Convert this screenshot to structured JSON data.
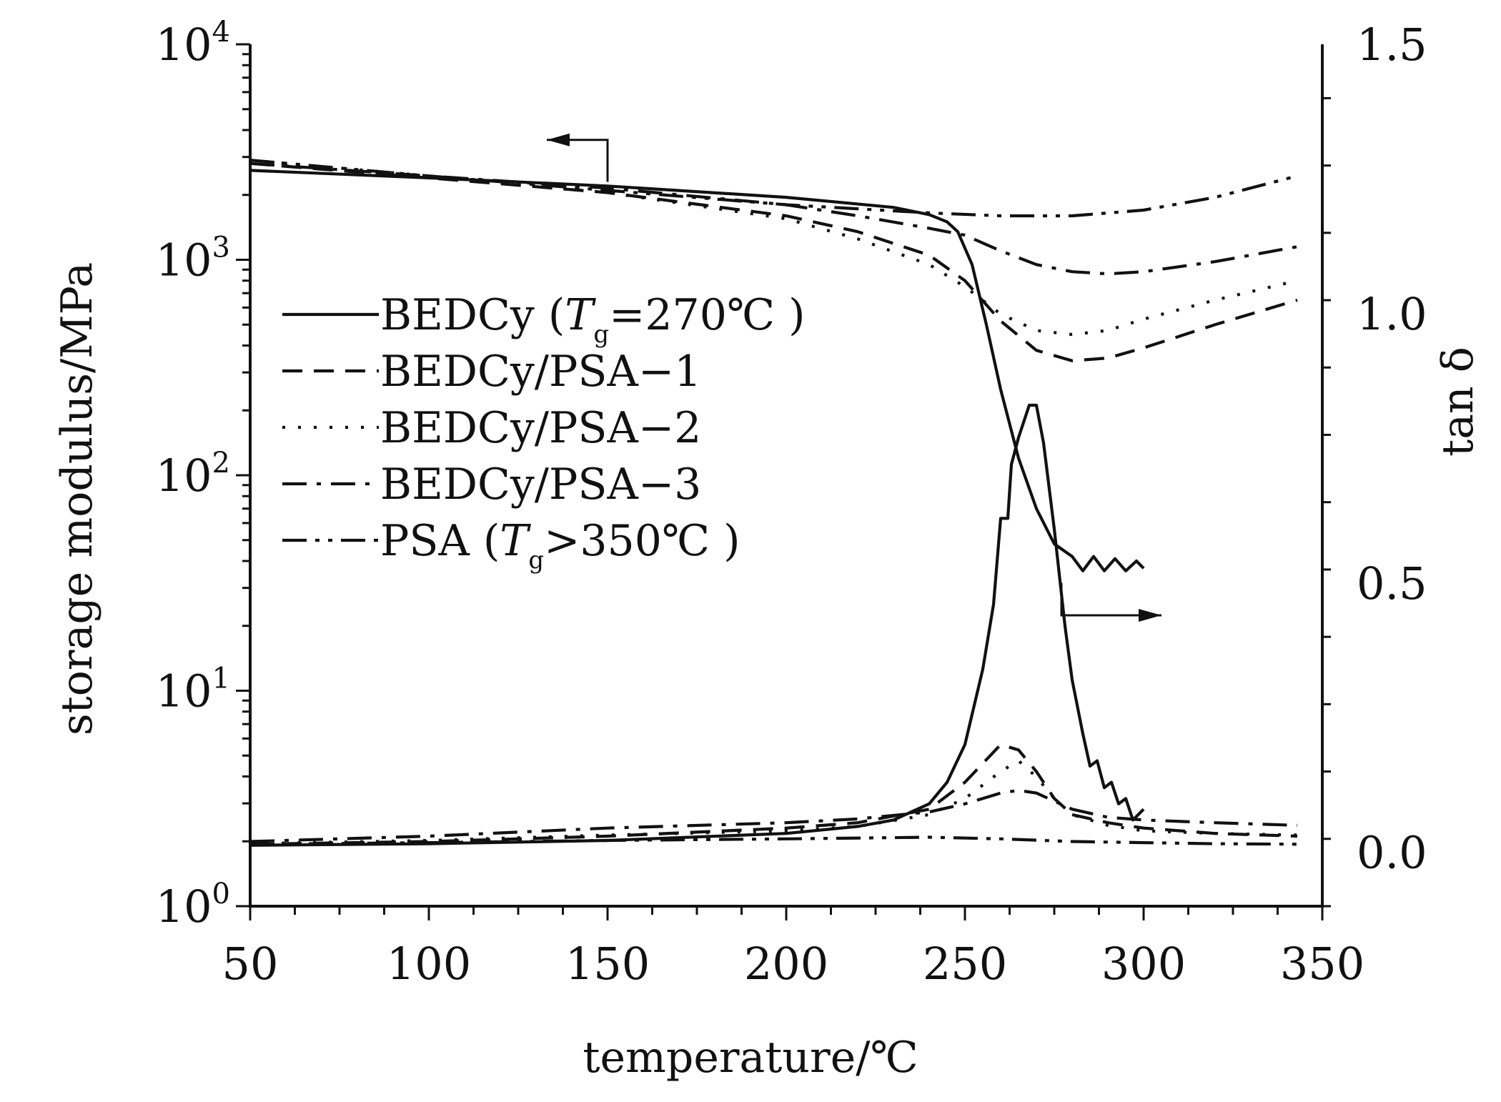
{
  "chart_data": {
    "type": "line",
    "xlabel": "temperature/℃",
    "ylabel": "storage modulus/MPa",
    "y2label": "tan δ",
    "xlim": [
      50,
      350
    ],
    "ylim": [
      1,
      10000
    ],
    "y_scale": "log",
    "y2lim": [
      -0.1,
      1.5
    ],
    "x_ticks": [
      50,
      100,
      150,
      200,
      250,
      300,
      350
    ],
    "x_tick_labels": [
      "50",
      "100",
      "150",
      "200",
      "250",
      "300",
      "350"
    ],
    "y_ticks": [
      {
        "value": 1,
        "base": "10",
        "exp": "0"
      },
      {
        "value": 10,
        "base": "10",
        "exp": "1"
      },
      {
        "value": 100,
        "base": "10",
        "exp": "2"
      },
      {
        "value": 1000,
        "base": "10",
        "exp": "3"
      },
      {
        "value": 10000,
        "base": "10",
        "exp": "4"
      }
    ],
    "y2_ticks": [
      0.0,
      0.5,
      1.0,
      1.5
    ],
    "y2_tick_labels": [
      "0.0",
      "0.5",
      "1.0",
      "1.5"
    ],
    "grid": false,
    "legend_position": "center-left",
    "legend": [
      {
        "main": "BEDCy (",
        "italic": "T",
        "sub": "g",
        "rest": "=270℃ )",
        "dash": "solid"
      },
      {
        "main": "BEDCy/PSA−1",
        "italic": "",
        "sub": "",
        "rest": "",
        "dash": "dash"
      },
      {
        "main": "BEDCy/PSA−2",
        "italic": "",
        "sub": "",
        "rest": "",
        "dash": "dot"
      },
      {
        "main": "BEDCy/PSA−3",
        "italic": "",
        "sub": "",
        "rest": "",
        "dash": "dashdot"
      },
      {
        "main": "PSA (",
        "italic": "T",
        "sub": "g",
        "rest": ">350℃ )",
        "dash": "dashdotdot"
      }
    ],
    "annotations": [
      {
        "type": "arrow",
        "points_to": "left-axis",
        "anchor": [
          150,
          2300
        ],
        "tip": [
          133,
          3600
        ],
        "axis": "y"
      },
      {
        "type": "arrow",
        "points_to": "right-axis",
        "anchor": [
          277,
          0.5
        ],
        "tip": [
          305,
          0.44
        ],
        "axis": "y2"
      }
    ],
    "series": [
      {
        "key": "bedcy",
        "axis": "y",
        "dash": "solid",
        "x": [
          50,
          100,
          150,
          200,
          230,
          240,
          245,
          248,
          252,
          256,
          260,
          265,
          270,
          275,
          280,
          283,
          286,
          289,
          292,
          295,
          298,
          300
        ],
        "y": [
          2600,
          2400,
          2200,
          1950,
          1750,
          1620,
          1500,
          1350,
          950,
          500,
          250,
          120,
          70,
          48,
          42,
          36,
          42,
          36,
          41,
          36,
          40,
          37
        ]
      },
      {
        "key": "psa1",
        "axis": "y",
        "dash": "dash",
        "x": [
          50,
          100,
          150,
          200,
          220,
          240,
          250,
          260,
          270,
          280,
          290,
          300,
          320,
          343
        ],
        "y": [
          2800,
          2400,
          2050,
          1600,
          1350,
          1050,
          800,
          520,
          380,
          340,
          350,
          390,
          500,
          650
        ]
      },
      {
        "key": "psa2",
        "axis": "y",
        "dash": "dot",
        "x": [
          50,
          100,
          150,
          200,
          220,
          240,
          250,
          260,
          270,
          280,
          290,
          300,
          320,
          343
        ],
        "y": [
          2900,
          2450,
          2050,
          1550,
          1250,
          950,
          750,
          560,
          470,
          450,
          470,
          530,
          650,
          800
        ]
      },
      {
        "key": "psa3",
        "axis": "y",
        "dash": "dashdot",
        "x": [
          50,
          100,
          150,
          200,
          220,
          240,
          250,
          260,
          270,
          280,
          290,
          300,
          320,
          343
        ],
        "y": [
          2800,
          2450,
          2150,
          1800,
          1600,
          1400,
          1300,
          1100,
          950,
          880,
          860,
          880,
          980,
          1150
        ]
      },
      {
        "key": "psa",
        "axis": "y",
        "dash": "dashdotdot",
        "x": [
          50,
          100,
          150,
          200,
          240,
          260,
          280,
          300,
          320,
          343
        ],
        "y": [
          2900,
          2450,
          2100,
          1800,
          1650,
          1600,
          1600,
          1700,
          1950,
          2450
        ]
      },
      {
        "key": "bedcy_tan",
        "axis": "y2",
        "dash": "solid",
        "x": [
          50,
          100,
          150,
          200,
          220,
          230,
          240,
          245,
          250,
          255,
          258,
          260,
          262,
          263,
          265,
          268,
          270,
          272,
          275,
          278,
          280,
          283,
          285,
          287,
          289,
          291,
          293,
          295,
          297,
          300
        ],
        "y": [
          0.013,
          0.016,
          0.022,
          0.035,
          0.048,
          0.06,
          0.09,
          0.13,
          0.2,
          0.34,
          0.46,
          0.62,
          0.62,
          0.72,
          0.77,
          0.83,
          0.83,
          0.76,
          0.6,
          0.42,
          0.32,
          0.22,
          0.16,
          0.17,
          0.12,
          0.13,
          0.09,
          0.1,
          0.06,
          0.08
        ]
      },
      {
        "key": "psa1_tan",
        "axis": "y2",
        "dash": "dash",
        "x": [
          50,
          100,
          150,
          200,
          220,
          240,
          250,
          260,
          265,
          270,
          275,
          280,
          290,
          300,
          320,
          343
        ],
        "y": [
          0.015,
          0.02,
          0.03,
          0.045,
          0.055,
          0.08,
          0.13,
          0.2,
          0.19,
          0.15,
          0.1,
          0.07,
          0.055,
          0.045,
          0.035,
          0.03
        ]
      },
      {
        "key": "psa2_tan",
        "axis": "y2",
        "dash": "dot",
        "x": [
          50,
          100,
          150,
          200,
          220,
          240,
          250,
          260,
          265,
          270,
          275,
          280,
          290,
          300,
          320,
          343
        ],
        "y": [
          0.016,
          0.022,
          0.032,
          0.04,
          0.048,
          0.07,
          0.1,
          0.15,
          0.17,
          0.14,
          0.1,
          0.07,
          0.05,
          0.04,
          0.035,
          0.032
        ]
      },
      {
        "key": "psa3_tan",
        "axis": "y2",
        "dash": "dashdot",
        "x": [
          50,
          100,
          150,
          200,
          220,
          240,
          250,
          260,
          265,
          270,
          275,
          280,
          290,
          300,
          320,
          343
        ],
        "y": [
          0.02,
          0.03,
          0.045,
          0.055,
          0.062,
          0.075,
          0.09,
          0.11,
          0.115,
          0.11,
          0.095,
          0.08,
          0.065,
          0.06,
          0.055,
          0.05
        ]
      },
      {
        "key": "psa_tan",
        "axis": "y2",
        "dash": "dashdotdot",
        "x": [
          50,
          100,
          150,
          200,
          240,
          260,
          280,
          300,
          320,
          343
        ],
        "y": [
          0.015,
          0.018,
          0.022,
          0.025,
          0.028,
          0.025,
          0.02,
          0.018,
          0.016,
          0.015
        ]
      }
    ]
  }
}
